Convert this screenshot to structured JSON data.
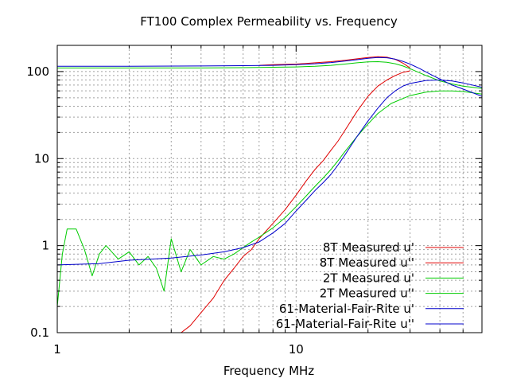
{
  "chart_data": {
    "type": "line",
    "title": "FT100 Complex Permeability vs. Frequency",
    "xlabel": "Frequency MHz",
    "ylabel": "",
    "xscale": "log",
    "yscale": "log",
    "xlim": [
      1,
      60
    ],
    "ylim": [
      0.1,
      200
    ],
    "grid": true,
    "legend_position": "bottom-right",
    "x_ticks": [
      {
        "value": 1,
        "label": "1"
      },
      {
        "value": 10,
        "label": "10"
      }
    ],
    "y_ticks": [
      {
        "value": 0.1,
        "label": "0.1"
      },
      {
        "value": 1,
        "label": "1"
      },
      {
        "value": 10,
        "label": "10"
      },
      {
        "value": 100,
        "label": "100"
      }
    ],
    "series": [
      {
        "name": "8T Measured u'",
        "color": "#e00000",
        "x": [
          7,
          8,
          9,
          10,
          11,
          12,
          14,
          16,
          18,
          20,
          22,
          24,
          26,
          28,
          30
        ],
        "y": [
          118,
          120,
          121,
          122,
          124,
          126,
          130,
          135,
          140,
          145,
          148,
          146,
          138,
          125,
          110
        ]
      },
      {
        "name": "8T Measured u''",
        "color": "#e00000",
        "x": [
          3.3,
          3.6,
          4,
          4.5,
          5,
          5.5,
          6,
          6.5,
          7,
          8,
          9,
          10,
          11,
          12,
          13,
          14,
          15,
          16,
          18,
          20,
          22,
          24,
          26,
          28,
          30
        ],
        "y": [
          0.1,
          0.12,
          0.17,
          0.25,
          0.4,
          0.55,
          0.75,
          0.9,
          1.2,
          1.8,
          2.6,
          3.8,
          5.5,
          7.5,
          9.5,
          12.5,
          16,
          21,
          35,
          52,
          68,
          80,
          90,
          98,
          102
        ]
      },
      {
        "name": "2T Measured u'",
        "color": "#00cc00",
        "x": [
          1,
          2,
          4,
          6,
          8,
          10,
          12,
          14,
          16,
          18,
          20,
          22,
          24,
          26,
          28,
          30,
          35,
          40,
          45,
          50,
          60
        ],
        "y": [
          110,
          110,
          110,
          111,
          112,
          113,
          115,
          118,
          122,
          126,
          129,
          130,
          128,
          123,
          116,
          108,
          90,
          78,
          72,
          68,
          64
        ]
      },
      {
        "name": "2T Measured u''",
        "color": "#00cc00",
        "x": [
          1,
          1.05,
          1.1,
          1.2,
          1.3,
          1.4,
          1.5,
          1.6,
          1.8,
          2,
          2.2,
          2.4,
          2.6,
          2.8,
          3,
          3.3,
          3.6,
          4,
          4.5,
          5,
          5.5,
          6,
          6.5,
          7,
          8,
          9,
          10,
          11,
          12,
          13,
          14,
          15,
          16,
          18,
          20,
          22,
          25,
          30,
          35,
          40,
          45,
          50,
          60
        ],
        "y": [
          0.2,
          0.8,
          1.55,
          1.55,
          0.9,
          0.45,
          0.8,
          1.0,
          0.7,
          0.85,
          0.6,
          0.75,
          0.55,
          0.3,
          1.2,
          0.5,
          0.9,
          0.6,
          0.75,
          0.7,
          0.8,
          0.95,
          1.1,
          1.25,
          1.6,
          2.1,
          2.8,
          3.7,
          4.8,
          6,
          7.5,
          9.5,
          12,
          18,
          25,
          33,
          43,
          53,
          58,
          60,
          60,
          59,
          55
        ]
      },
      {
        "name": "61-Material-Fair-Rite u'",
        "color": "#0000cc",
        "x": [
          1,
          2,
          4,
          6,
          8,
          10,
          12,
          14,
          16,
          18,
          20,
          22,
          24,
          26,
          28,
          30,
          33,
          36,
          40,
          45,
          50,
          60
        ],
        "y": [
          115,
          115,
          116,
          117,
          118,
          120,
          123,
          127,
          132,
          137,
          142,
          145,
          144,
          139,
          131,
          122,
          108,
          95,
          82,
          70,
          63,
          52
        ]
      },
      {
        "name": "61-Material-Fair-Rite u''",
        "color": "#0000cc",
        "x": [
          1,
          1.5,
          2,
          3,
          4,
          5,
          6,
          7,
          8,
          9,
          10,
          11,
          12,
          13,
          14,
          15,
          16,
          18,
          20,
          22,
          24,
          26,
          28,
          30,
          35,
          40,
          45,
          50,
          60
        ],
        "y": [
          0.6,
          0.62,
          0.68,
          0.72,
          0.78,
          0.85,
          0.95,
          1.1,
          1.4,
          1.8,
          2.5,
          3.3,
          4.3,
          5.3,
          6.6,
          8.5,
          11,
          18,
          27,
          38,
          50,
          60,
          68,
          73,
          79,
          80,
          78,
          74,
          66
        ]
      }
    ]
  }
}
